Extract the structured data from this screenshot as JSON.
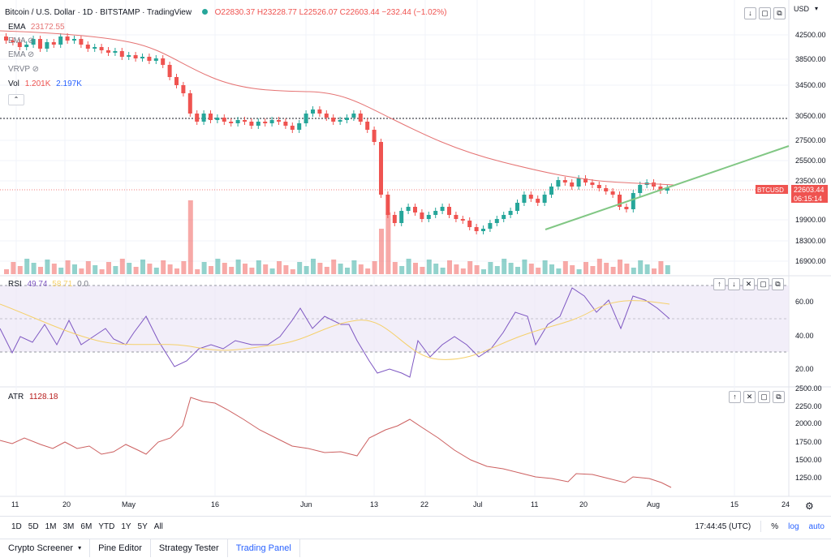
{
  "header": {
    "symbol_title": "Bitcoin / U.S. Dollar · 1D · BITSTAMP · TradingView",
    "ohlc": "O22830.37 H23228.77 L22526.07 C22603.44 −232.44 (−1.02%)",
    "currency": "USD",
    "status_color": "#26a69a"
  },
  "indicators": {
    "ema1_name": "EMA",
    "ema1_value": "23172.55",
    "ema2_name": "EMA",
    "ema3_name": "EMA",
    "vrvp_name": "VRVP",
    "vol_name": "Vol",
    "vol_v1": "1.201K",
    "vol_v2": "2.197K",
    "rsi_name": "RSI",
    "rsi_v1": "49.74",
    "rsi_v2": "58.71",
    "rsi_v3": "0.0",
    "atr_name": "ATR",
    "atr_value": "1128.18"
  },
  "price_axis": {
    "ticks": [
      "42500.00",
      "38500.00",
      "34500.00",
      "30500.00",
      "27500.00",
      "25500.00",
      "23500.00",
      "19900.00",
      "18300.00",
      "16900.00"
    ],
    "current_tag": "22603.44",
    "symbol_tag": "BTCUSD",
    "countdown": "06:15:14"
  },
  "rsi_axis": {
    "ticks": [
      "60.00",
      "40.00",
      "20.00"
    ]
  },
  "atr_axis": {
    "ticks": [
      "2500.00",
      "2250.00",
      "2000.00",
      "1750.00",
      "1500.00",
      "1250.00"
    ]
  },
  "time_axis": {
    "labels": [
      "11",
      "20",
      "May",
      "16",
      "Jun",
      "13",
      "22",
      "Jul",
      "11",
      "20",
      "Aug",
      "15",
      "24"
    ]
  },
  "toolbar": {
    "timeframes": [
      "1D",
      "5D",
      "1M",
      "3M",
      "6M",
      "YTD",
      "1Y",
      "5Y",
      "All"
    ],
    "clock": "17:44:45 (UTC)",
    "percent": "%",
    "log": "log",
    "auto": "auto"
  },
  "bottom_tabs": [
    "Crypto Screener",
    "Pine Editor",
    "Strategy Tester",
    "Trading Panel"
  ],
  "colors": {
    "up": "#26a69a",
    "down": "#ef5350",
    "ema": "#e57373",
    "rsi": "#7e57c2",
    "rsi_ma": "#f5d06b",
    "atr": "#b71c1c",
    "trend": "#81c784",
    "accent": "#2962ff"
  }
}
